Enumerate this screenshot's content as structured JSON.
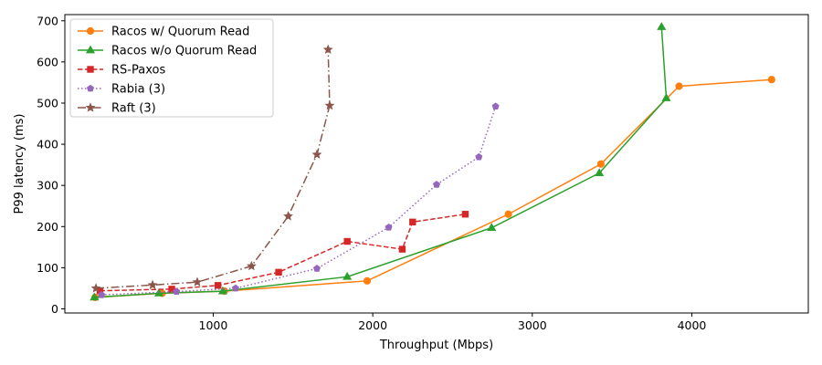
{
  "chart_data": {
    "type": "line",
    "xlabel": "Throughput (Mbps)",
    "ylabel": "P99 latency (ms)",
    "xlim": [
      70,
      4730
    ],
    "ylim": [
      -10,
      715
    ],
    "x_ticks": [
      1000,
      2000,
      3000,
      4000
    ],
    "y_ticks": [
      0,
      100,
      200,
      300,
      400,
      500,
      600,
      700
    ],
    "grid": false,
    "legend_position": "top-left",
    "series": [
      {
        "name": "Racos w/ Quorum Read",
        "color": "#ff7f0e",
        "marker": "circle",
        "line_style": "solid",
        "x": [
          260,
          680,
          1070,
          1965,
          2850,
          3430,
          3920,
          4500
        ],
        "y": [
          28,
          38,
          43,
          68,
          230,
          352,
          541,
          557
        ]
      },
      {
        "name": "Racos w/o Quorum Read",
        "color": "#2ca02c",
        "marker": "triangle",
        "line_style": "solid",
        "x": [
          255,
          660,
          1060,
          1840,
          2745,
          3420,
          3840,
          3810
        ],
        "y": [
          28,
          38,
          43,
          78,
          197,
          330,
          512,
          685
        ]
      },
      {
        "name": "RS-Paxos",
        "color": "#d62728",
        "marker": "square",
        "line_style": "dashed",
        "x": [
          290,
          740,
          1030,
          1410,
          1840,
          2185,
          2250,
          2580
        ],
        "y": [
          44,
          48,
          57,
          89,
          164,
          145,
          211,
          230
        ]
      },
      {
        "name": "Rabia (3)",
        "color": "#9467bd",
        "marker": "pentagon",
        "line_style": "dotted",
        "x": [
          300,
          770,
          1140,
          1650,
          2100,
          2400,
          2665,
          2770
        ],
        "y": [
          34,
          42,
          50,
          98,
          198,
          302,
          369,
          492
        ]
      },
      {
        "name": "Raft (3)",
        "color": "#8c564b",
        "marker": "star",
        "line_style": "dashdot",
        "x": [
          265,
          620,
          900,
          1240,
          1470,
          1650,
          1730,
          1720
        ],
        "y": [
          50,
          58,
          65,
          104,
          225,
          375,
          494,
          630
        ]
      }
    ]
  }
}
